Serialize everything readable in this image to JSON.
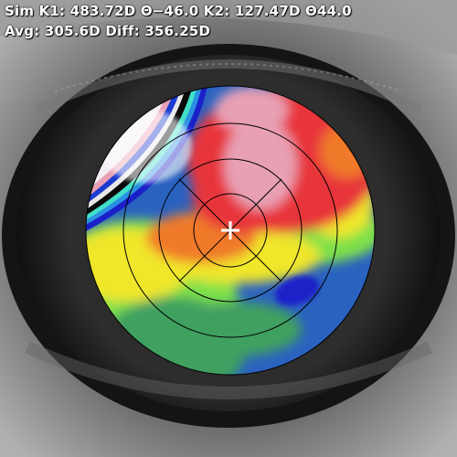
{
  "readout": {
    "line1": "Sim K1: 483.72D Θ−46.0 K2: 127.47D Θ44.0",
    "line2": "Avg: 305.6D Diff: 356.25D"
  },
  "topography": {
    "sim_k1_diopters": 483.72,
    "sim_k1_axis_deg": -46.0,
    "sim_k2_diopters": 127.47,
    "sim_k2_axis_deg": 44.0,
    "average_diopters": 305.6,
    "difference_diopters": 356.25,
    "colors": {
      "steep_white": "#f4eef4",
      "pink": "#e8a0b4",
      "red": "#e8363a",
      "orange": "#f07a2a",
      "yellow": "#f0e62a",
      "green": "#7ee04a",
      "teal": "#3fa060",
      "blue": "#2a62c0",
      "dark_blue": "#1a20c8",
      "ring_lines": "#000000",
      "center_marker": "#ffffff"
    }
  }
}
